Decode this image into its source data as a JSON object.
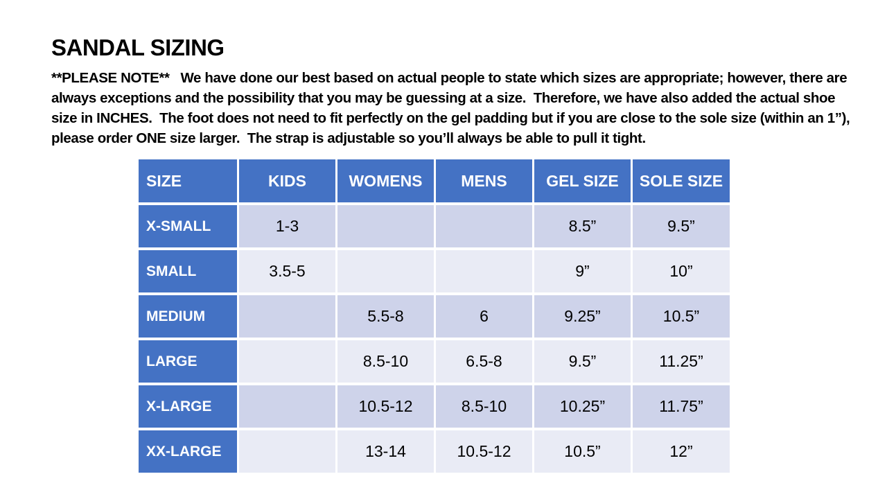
{
  "title": "SANDAL SIZING",
  "note": {
    "lines": [
      "**PLEASE NOTE**   We have done our best based on actual people to state which sizes are appropriate; however, there are",
      "always exceptions and the possibility that you may be guessing at a size.  Therefore, we have also added the actual shoe",
      "size in INCHES.  The foot does not need to fit perfectly on the gel padding but if you are close to the sole size (within an 1”),",
      "please order ONE size larger.  The strap is adjustable so you’ll always be able to pull it tight."
    ]
  },
  "table": {
    "headers": [
      "SIZE",
      "KIDS",
      "WOMENS",
      "MENS",
      "GEL SIZE",
      "SOLE SIZE"
    ],
    "rows": [
      [
        "X-SMALL",
        "1-3",
        "",
        "",
        "8.5”",
        "9.5”"
      ],
      [
        "SMALL",
        "3.5-5",
        "",
        "",
        "9”",
        "10”"
      ],
      [
        "MEDIUM",
        "",
        "5.5-8",
        "6",
        "9.25”",
        "10.5”"
      ],
      [
        "LARGE",
        "",
        "8.5-10",
        "6.5-8",
        "9.5”",
        "11.25”"
      ],
      [
        "X-LARGE",
        "",
        "10.5-12",
        "8.5-10",
        "10.25”",
        "11.75”"
      ],
      [
        "XX-LARGE",
        "",
        "13-14",
        "10.5-12",
        "10.5”",
        "12”"
      ]
    ]
  },
  "colors": {
    "header_blue": "#4472C4",
    "band_dark": "#CED3EA",
    "band_light": "#E9EBF5",
    "header_text": "#FFFFFF",
    "body_text": "#000000",
    "background": "#FFFFFF"
  }
}
